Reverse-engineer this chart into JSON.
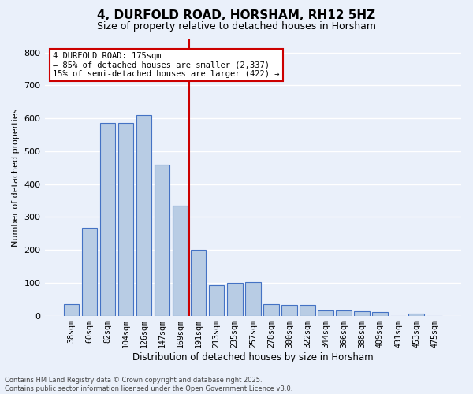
{
  "title": "4, DURFOLD ROAD, HORSHAM, RH12 5HZ",
  "subtitle": "Size of property relative to detached houses in Horsham",
  "xlabel": "Distribution of detached houses by size in Horsham",
  "ylabel": "Number of detached properties",
  "bar_labels": [
    "38sqm",
    "60sqm",
    "82sqm",
    "104sqm",
    "126sqm",
    "147sqm",
    "169sqm",
    "191sqm",
    "213sqm",
    "235sqm",
    "257sqm",
    "278sqm",
    "300sqm",
    "322sqm",
    "344sqm",
    "366sqm",
    "388sqm",
    "409sqm",
    "431sqm",
    "453sqm",
    "475sqm"
  ],
  "bar_values": [
    35,
    268,
    585,
    585,
    610,
    460,
    335,
    200,
    93,
    100,
    103,
    35,
    32,
    32,
    15,
    15,
    13,
    10,
    0,
    5,
    0
  ],
  "bar_color": "#b8cce4",
  "bar_edge_color": "#4472c4",
  "bg_color": "#eaf0fa",
  "grid_color": "#ffffff",
  "vline_index": 6.5,
  "vline_color": "#cc0000",
  "annotation_text": "4 DURFOLD ROAD: 175sqm\n← 85% of detached houses are smaller (2,337)\n15% of semi-detached houses are larger (422) →",
  "annotation_box_color": "#ffffff",
  "annotation_box_edge": "#cc0000",
  "footer_text": "Contains HM Land Registry data © Crown copyright and database right 2025.\nContains public sector information licensed under the Open Government Licence v3.0.",
  "ylim": [
    0,
    840
  ],
  "yticks": [
    0,
    100,
    200,
    300,
    400,
    500,
    600,
    700,
    800
  ],
  "title_fontsize": 11,
  "subtitle_fontsize": 9
}
